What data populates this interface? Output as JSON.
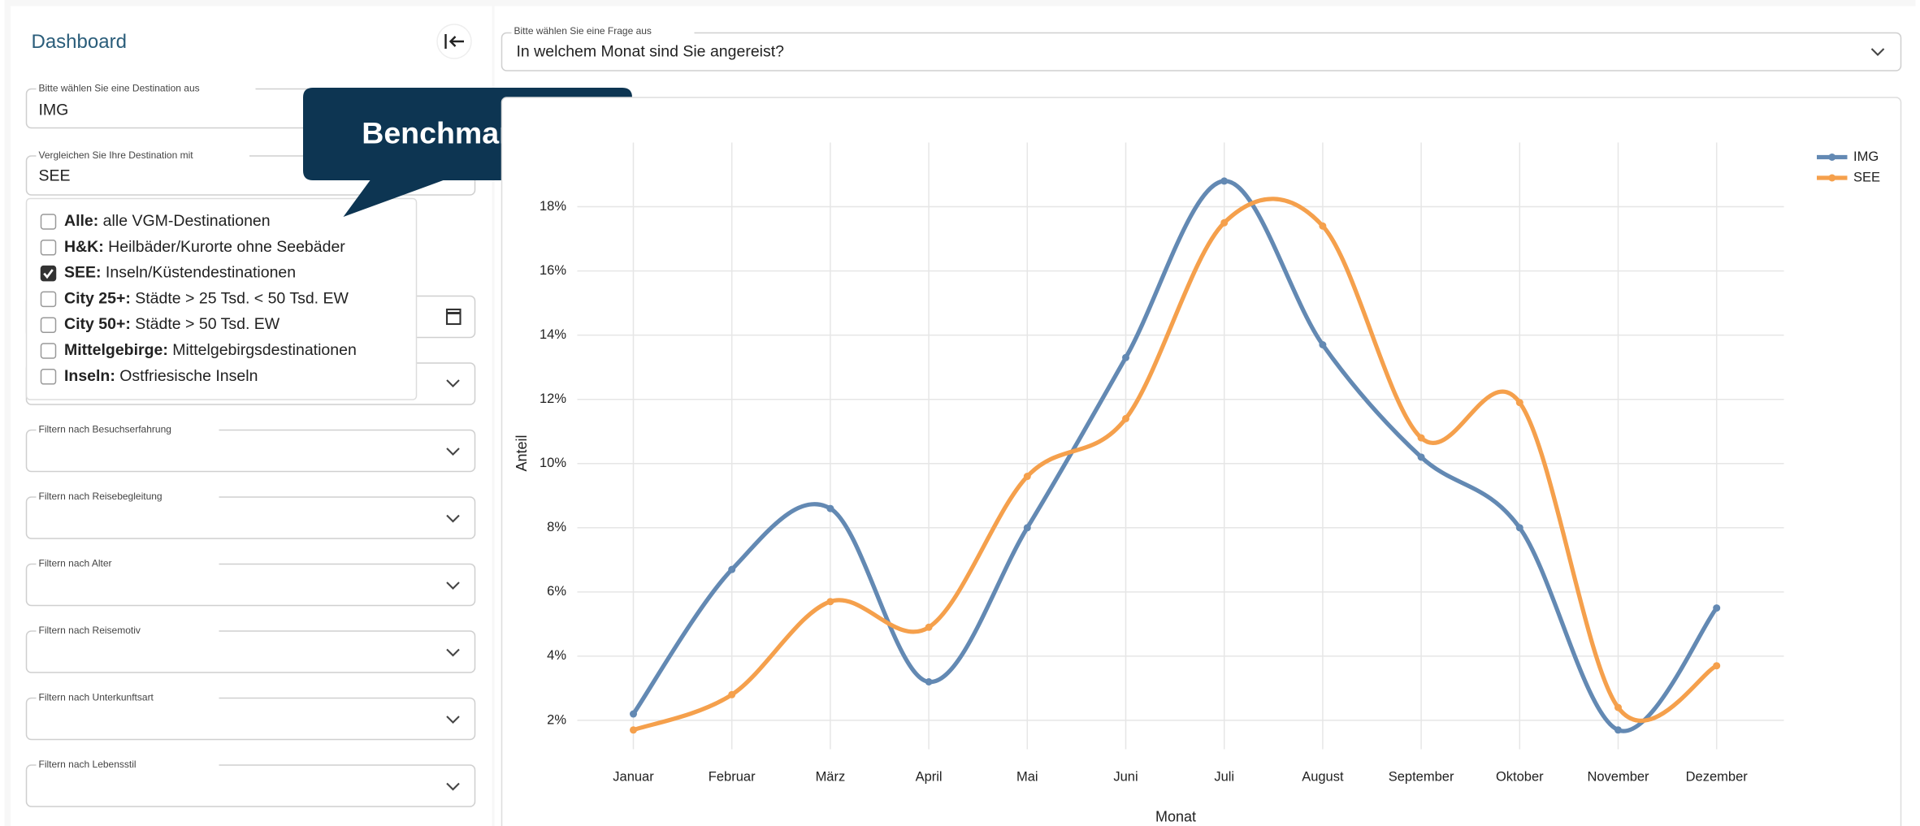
{
  "sidebar": {
    "title": "Dashboard",
    "destination": {
      "label": "Bitte wählen Sie eine Destination aus",
      "value": "IMG"
    },
    "compare": {
      "label": "Vergleichen Sie Ihre Destination mit",
      "value": "SEE"
    },
    "options": [
      {
        "name": "Alle:",
        "text": " alle VGM-Destinationen",
        "checked": false
      },
      {
        "name": "H&K:",
        "text": " Heilbäder/Kurorte ohne Seebäder",
        "checked": false
      },
      {
        "name": "SEE:",
        "text": " Inseln/Küstendestinationen",
        "checked": true
      },
      {
        "name": "City 25+:",
        "text": " Städte > 25 Tsd. < 50 Tsd. EW",
        "checked": false
      },
      {
        "name": "City 50+:",
        "text": " Städte > 50 Tsd. EW",
        "checked": false
      },
      {
        "name": "Mittelgebirge:",
        "text": " Mittelgebirgsdestinationen",
        "checked": false
      },
      {
        "name": "Inseln:",
        "text": " Ostfriesische Inseln",
        "checked": false
      }
    ],
    "filters": [
      "Filtern nach Besuchserfahrung",
      "Filtern nach Reisebegleitung",
      "Filtern nach Alter",
      "Filtern nach Reisemotiv",
      "Filtern nach Unterkunftsart",
      "Filtern nach Lebensstil"
    ]
  },
  "callout": "Benchmarking",
  "question": {
    "label": "Bitte wählen Sie eine Frage aus",
    "value": "In welchem Monat sind Sie angereist?"
  },
  "chart_data": {
    "type": "line",
    "x_label": "Monat",
    "y_label": "Anteil",
    "categories": [
      "Januar",
      "Februar",
      "März",
      "April",
      "Mai",
      "Juni",
      "Juli",
      "August",
      "September",
      "Oktober",
      "November",
      "Dezember"
    ],
    "series": [
      {
        "name": "IMG",
        "color": "#6389b3",
        "values": [
          2.2,
          6.7,
          8.6,
          3.2,
          8.0,
          13.3,
          18.8,
          13.7,
          10.2,
          8.0,
          1.7,
          5.5
        ]
      },
      {
        "name": "SEE",
        "color": "#f5a04c",
        "values": [
          1.7,
          2.8,
          5.7,
          4.9,
          9.6,
          11.4,
          17.5,
          17.4,
          10.8,
          11.9,
          2.4,
          3.7
        ]
      }
    ],
    "ylim": [
      1.1,
      20
    ],
    "yticks": [
      {
        "value": 2,
        "label": "2%"
      },
      {
        "value": 4,
        "label": "4%"
      },
      {
        "value": 6,
        "label": "6%"
      },
      {
        "value": 8,
        "label": "8%"
      },
      {
        "value": 10,
        "label": "10%"
      },
      {
        "value": 12,
        "label": "12%"
      },
      {
        "value": 14,
        "label": "14%"
      },
      {
        "value": 16,
        "label": "16%"
      },
      {
        "value": 18,
        "label": "18%"
      }
    ],
    "grid": true,
    "smooth": true,
    "legend": "top-right"
  }
}
